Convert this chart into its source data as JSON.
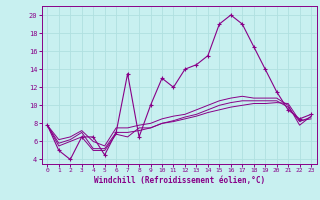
{
  "xlabel": "Windchill (Refroidissement éolien,°C)",
  "background_color": "#c8f0f0",
  "grid_color": "#b0e0e0",
  "line_color": "#880088",
  "xlim": [
    -0.5,
    23.5
  ],
  "ylim": [
    3.5,
    21.0
  ],
  "xticks": [
    0,
    1,
    2,
    3,
    4,
    5,
    6,
    7,
    8,
    9,
    10,
    11,
    12,
    13,
    14,
    15,
    16,
    17,
    18,
    19,
    20,
    21,
    22,
    23
  ],
  "yticks": [
    4,
    6,
    8,
    10,
    12,
    14,
    16,
    18,
    20
  ],
  "hours": [
    0,
    1,
    2,
    3,
    4,
    5,
    6,
    7,
    8,
    9,
    10,
    11,
    12,
    13,
    14,
    15,
    16,
    17,
    18,
    19,
    20,
    21,
    22,
    23
  ],
  "line1": [
    7.8,
    5.0,
    4.0,
    6.5,
    6.5,
    4.5,
    7.0,
    13.5,
    6.5,
    10.0,
    13.0,
    12.0,
    14.0,
    14.5,
    15.5,
    19.0,
    20.0,
    19.0,
    16.5,
    14.0,
    11.5,
    9.5,
    8.5,
    9.0
  ],
  "line2": [
    7.8,
    5.5,
    6.0,
    6.5,
    5.0,
    5.0,
    6.8,
    6.5,
    7.5,
    7.5,
    8.0,
    8.2,
    8.5,
    8.8,
    9.2,
    9.5,
    9.8,
    10.0,
    10.2,
    10.2,
    10.3,
    10.2,
    8.3,
    8.5
  ],
  "line3": [
    7.8,
    5.8,
    6.2,
    7.0,
    5.2,
    5.2,
    7.0,
    7.0,
    7.2,
    7.5,
    8.0,
    8.3,
    8.7,
    9.0,
    9.5,
    10.0,
    10.3,
    10.5,
    10.5,
    10.5,
    10.5,
    9.8,
    8.2,
    8.7
  ],
  "line4": [
    7.8,
    6.2,
    6.5,
    7.2,
    6.0,
    5.5,
    7.5,
    7.5,
    7.8,
    8.0,
    8.5,
    8.8,
    9.0,
    9.5,
    10.0,
    10.5,
    10.8,
    11.0,
    10.8,
    10.8,
    10.8,
    10.0,
    7.8,
    8.8
  ]
}
